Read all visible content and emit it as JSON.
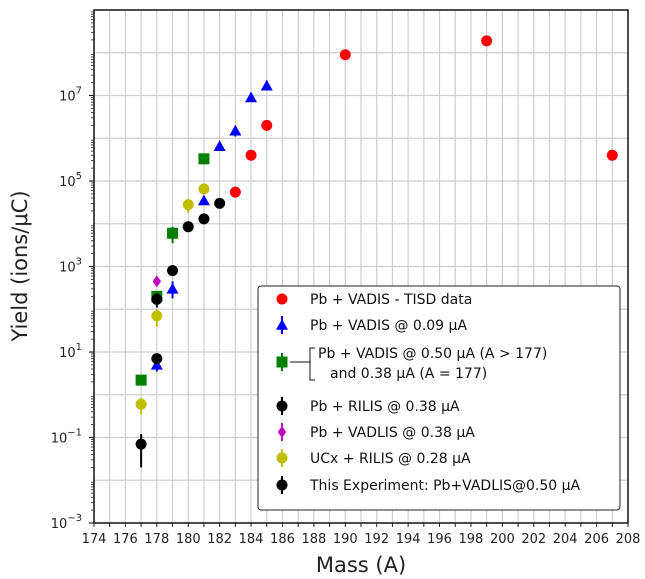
{
  "chart_data": {
    "type": "scatter",
    "xlabel": "Mass (A)",
    "ylabel": "Yield (ions/μC)",
    "xlim": [
      174,
      208
    ],
    "ylim_log10": [
      -3,
      9
    ],
    "y_scale": "log",
    "x_ticks": [
      "174",
      "176",
      "178",
      "180",
      "182",
      "184",
      "186",
      "188",
      "190",
      "192",
      "194",
      "196",
      "198",
      "200",
      "202",
      "204",
      "206",
      "208"
    ],
    "y_ticks": [
      {
        "base": "10",
        "exp": "−3",
        "log": -3
      },
      {
        "base": "10",
        "exp": "−1",
        "log": -1
      },
      {
        "base": "10",
        "exp": "1",
        "log": 1
      },
      {
        "base": "10",
        "exp": "3",
        "log": 3
      },
      {
        "base": "10",
        "exp": "5",
        "log": 5
      },
      {
        "base": "10",
        "exp": "7",
        "log": 7
      }
    ],
    "grid": true,
    "legend_position": "bottom-right",
    "series": [
      {
        "name": "Pb + VADIS - TISD data",
        "marker": "circle",
        "color": "#ff0000",
        "points": [
          {
            "x": 183,
            "y": 55000
          },
          {
            "x": 184,
            "y": 400000
          },
          {
            "x": 185,
            "y": 2000000
          },
          {
            "x": 190,
            "y": 90000000
          },
          {
            "x": 199,
            "y": 190000000
          },
          {
            "x": 207,
            "y": 400000
          }
        ]
      },
      {
        "name": "Pb + VADIS @ 0.09 μA",
        "marker": "triangle",
        "color": "#0000ff",
        "points": [
          {
            "x": 178,
            "y": 5,
            "lo": 3.5,
            "hi": 6.5
          },
          {
            "x": 179,
            "y": 300,
            "lo": 180,
            "hi": 450
          },
          {
            "x": 181,
            "y": 35000,
            "lo": 28000,
            "hi": 42000
          },
          {
            "x": 182,
            "y": 650000,
            "lo": 520000,
            "hi": 780000
          },
          {
            "x": 183,
            "y": 1500000,
            "lo": 1100000,
            "hi": 1900000
          },
          {
            "x": 184,
            "y": 9000000,
            "lo": 7500000,
            "hi": 10500000
          },
          {
            "x": 185,
            "y": 17000000,
            "lo": 14500000,
            "hi": 19500000
          }
        ]
      },
      {
        "name": "Pb + VADIS @ 0.50 μA (A > 177)",
        "name_line2": "and 0.38 μA (A = 177)",
        "marker": "square",
        "color": "#008000",
        "points": [
          {
            "x": 177,
            "y": 2.2
          },
          {
            "x": 178,
            "y": 200,
            "lo": 140,
            "hi": 260
          },
          {
            "x": 179,
            "y": 6000,
            "lo": 3500,
            "hi": 8500
          },
          {
            "x": 181,
            "y": 330000
          }
        ]
      },
      {
        "name": "Pb + RILIS @ 0.38 μA",
        "marker": "circle",
        "color": "#000000",
        "points": [
          {
            "x": 178,
            "y": 170,
            "lo": 110,
            "hi": 240
          }
        ]
      },
      {
        "name": "Pb + VADLIS @ 0.38 μA",
        "marker": "diamond",
        "color": "#bf00bf",
        "points": [
          {
            "x": 178,
            "y": 450
          }
        ]
      },
      {
        "name": "UCx + RILIS @ 0.28 μA",
        "marker": "circle",
        "color": "#bfbf00",
        "points": [
          {
            "x": 177,
            "y": 0.6,
            "lo": 0.35,
            "hi": 0.85
          },
          {
            "x": 178,
            "y": 70,
            "lo": 40,
            "hi": 100
          },
          {
            "x": 180,
            "y": 28000,
            "lo": 18000,
            "hi": 38000
          },
          {
            "x": 181,
            "y": 65000,
            "lo": 52000,
            "hi": 78000
          }
        ]
      },
      {
        "name": "This Experiment: Pb+VADLIS@0.50 μA",
        "marker": "circle",
        "color": "#000000",
        "points": [
          {
            "x": 177,
            "y": 0.07,
            "lo": 0.02,
            "hi": 0.12
          },
          {
            "x": 178,
            "y": 7,
            "lo": 5.5,
            "hi": 8.5
          },
          {
            "x": 179,
            "y": 800
          },
          {
            "x": 180,
            "y": 8500
          },
          {
            "x": 181,
            "y": 13000
          },
          {
            "x": 182,
            "y": 30000
          }
        ]
      }
    ]
  }
}
